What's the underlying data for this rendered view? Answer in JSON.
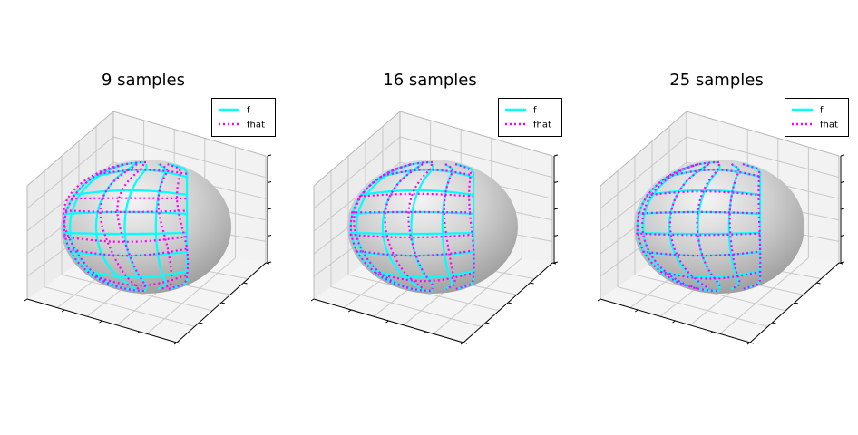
{
  "chart_data": [
    {
      "type": "3d-surface",
      "title": "9 samples",
      "xlabel": "",
      "ylabel": "",
      "zlabel": "",
      "grid": true,
      "legend_position": "top-right",
      "series": [
        {
          "name": "f",
          "style": "solid",
          "color": "#00ffff"
        },
        {
          "name": "fhat",
          "style": "dotted",
          "color": "#ff00ff"
        }
      ]
    },
    {
      "type": "3d-surface",
      "title": "16 samples",
      "xlabel": "",
      "ylabel": "",
      "zlabel": "",
      "grid": true,
      "legend_position": "top-right",
      "series": [
        {
          "name": "f",
          "style": "solid",
          "color": "#00ffff"
        },
        {
          "name": "fhat",
          "style": "dotted",
          "color": "#ff00ff"
        }
      ]
    },
    {
      "type": "3d-surface",
      "title": "25 samples",
      "xlabel": "",
      "ylabel": "",
      "zlabel": "",
      "grid": true,
      "legend_position": "top-right",
      "series": [
        {
          "name": "f",
          "style": "solid",
          "color": "#00ffff"
        },
        {
          "name": "fhat",
          "style": "dotted",
          "color": "#ff00ff"
        }
      ]
    }
  ]
}
